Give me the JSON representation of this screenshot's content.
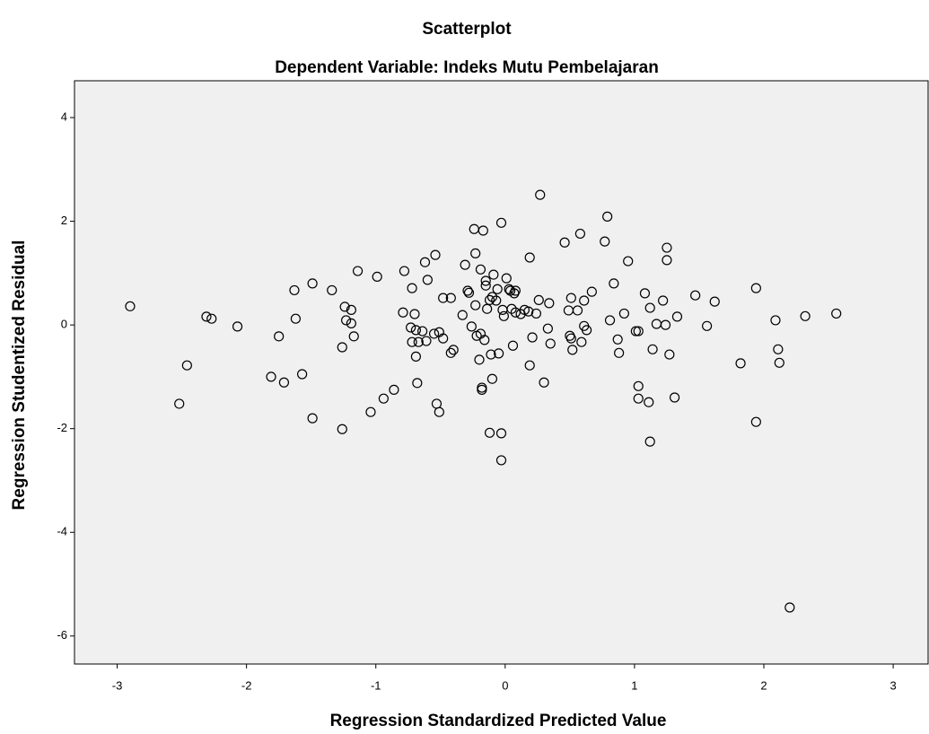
{
  "chart_data": {
    "type": "scatter",
    "title": "Scatterplot",
    "subtitle": "Dependent Variable: Indeks Mutu Pembelajaran",
    "xlabel": "Regression Standardized Predicted Value",
    "ylabel": "Regression Studentized Residual",
    "color": "#000000",
    "background": "#f0f0f0",
    "xlim": [
      -3.33,
      3.27
    ],
    "ylim": [
      -6.54,
      4.71
    ],
    "xticks": [
      -3,
      -2,
      -1,
      0,
      1,
      2,
      3
    ],
    "yticks": [
      -6,
      -4,
      -2,
      0,
      2,
      4
    ],
    "x": [
      -2.9,
      -2.52,
      -2.46,
      -2.31,
      -2.27,
      -2.07,
      -1.81,
      -1.75,
      -1.71,
      -1.63,
      -1.62,
      -1.57,
      -1.49,
      -1.49,
      -1.34,
      -1.26,
      -1.26,
      -1.24,
      -1.23,
      -1.19,
      -1.19,
      -1.17,
      -1.14,
      -1.04,
      -0.99,
      -0.94,
      -0.86,
      -0.79,
      -0.78,
      -0.73,
      -0.72,
      -0.72,
      -0.7,
      -0.69,
      -0.69,
      -0.68,
      -0.67,
      -0.61,
      -0.62,
      -0.64,
      -0.6,
      -0.55,
      -0.51,
      -0.48,
      -0.51,
      -0.53,
      -0.54,
      -0.48,
      -0.42,
      -0.4,
      -0.42,
      -0.33,
      -0.31,
      -0.29,
      -0.28,
      -0.26,
      -0.23,
      -0.23,
      -0.22,
      -0.2,
      -0.19,
      -0.18,
      -0.16,
      -0.24,
      -0.19,
      -0.18,
      -0.17,
      -0.14,
      -0.15,
      -0.15,
      -0.11,
      -0.12,
      -0.12,
      -0.1,
      -0.09,
      -0.07,
      -0.06,
      -0.05,
      -0.1,
      -0.03,
      -0.03,
      -0.03,
      -0.02,
      -0.01,
      0.01,
      0.03,
      0.04,
      0.06,
      0.05,
      0.07,
      0.08,
      0.08,
      0.12,
      0.15,
      0.19,
      0.18,
      0.19,
      0.21,
      0.24,
      0.26,
      0.27,
      0.3,
      0.33,
      0.35,
      0.34,
      0.46,
      0.49,
      0.5,
      0.51,
      0.51,
      0.52,
      0.56,
      0.58,
      0.59,
      0.61,
      0.61,
      0.63,
      0.67,
      0.77,
      0.79,
      0.81,
      0.84,
      0.87,
      0.88,
      0.92,
      0.95,
      1.01,
      1.03,
      1.03,
      1.03,
      1.08,
      1.12,
      1.11,
      1.12,
      1.14,
      1.17,
      1.22,
      1.24,
      1.25,
      1.25,
      1.27,
      1.31,
      1.33,
      1.47,
      1.56,
      1.62,
      1.82,
      1.94,
      1.94,
      2.09,
      2.11,
      2.12,
      2.2,
      2.32,
      2.56
    ],
    "values": [
      0.36,
      -1.52,
      -0.78,
      0.16,
      0.12,
      -0.03,
      -1.0,
      -0.22,
      -1.11,
      0.67,
      0.12,
      -0.95,
      0.8,
      -1.8,
      0.67,
      -0.43,
      -2.01,
      0.35,
      0.09,
      0.29,
      0.03,
      -0.22,
      1.04,
      -1.68,
      0.93,
      -1.42,
      -1.25,
      0.24,
      1.04,
      -0.05,
      -0.33,
      0.71,
      0.21,
      -0.1,
      -0.61,
      -1.12,
      -0.33,
      -0.31,
      1.21,
      -0.12,
      0.87,
      -0.17,
      -0.14,
      -0.26,
      -1.68,
      -1.52,
      1.35,
      0.52,
      0.52,
      -0.48,
      -0.54,
      0.19,
      1.16,
      0.66,
      0.62,
      -0.03,
      0.38,
      1.38,
      -0.21,
      -0.67,
      -0.17,
      -1.25,
      -0.29,
      1.85,
      1.07,
      -1.21,
      1.82,
      0.31,
      0.85,
      0.76,
      -0.57,
      0.48,
      -2.08,
      0.54,
      0.97,
      0.47,
      0.69,
      -0.55,
      -1.04,
      1.97,
      -2.09,
      -2.61,
      0.29,
      0.17,
      0.9,
      0.69,
      0.66,
      -0.4,
      0.31,
      0.61,
      0.24,
      0.66,
      0.21,
      0.29,
      1.3,
      0.26,
      -0.78,
      -0.24,
      0.22,
      0.48,
      2.51,
      -1.11,
      -0.07,
      -0.36,
      0.42,
      1.59,
      0.28,
      -0.21,
      0.52,
      -0.26,
      -0.48,
      0.28,
      1.76,
      -0.33,
      -0.02,
      0.47,
      -0.1,
      0.64,
      1.61,
      2.09,
      0.09,
      0.8,
      -0.28,
      -0.54,
      0.22,
      1.23,
      -0.12,
      -0.12,
      -1.18,
      -1.42,
      0.61,
      0.33,
      -1.49,
      -2.25,
      -0.47,
      0.02,
      0.47,
      0.0,
      1.49,
      1.25,
      -0.57,
      -1.4,
      0.16,
      0.57,
      -0.02,
      0.45,
      -0.74,
      0.71,
      -1.87,
      0.09,
      -0.47,
      -0.73,
      -5.45,
      0.17,
      0.22
    ]
  }
}
